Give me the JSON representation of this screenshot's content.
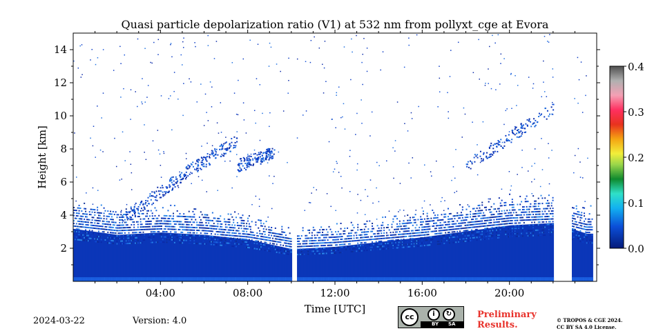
{
  "chart_data": {
    "type": "heatmap",
    "title": "Quasi particle depolarization ratio (V1) at 532 nm from pollyxt_cge at Evora",
    "xlabel": "Time [UTC]",
    "ylabel": "Height [km]",
    "x_range_hours": [
      0,
      24
    ],
    "y_range_km": [
      0,
      15
    ],
    "x_ticks": [
      {
        "value": 4,
        "label": "04:00"
      },
      {
        "value": 8,
        "label": "08:00"
      },
      {
        "value": 12,
        "label": "12:00"
      },
      {
        "value": 16,
        "label": "16:00"
      },
      {
        "value": 20,
        "label": "20:00"
      }
    ],
    "y_ticks": [
      {
        "value": 2,
        "label": "2"
      },
      {
        "value": 4,
        "label": "4"
      },
      {
        "value": 6,
        "label": "6"
      },
      {
        "value": 8,
        "label": "8"
      },
      {
        "value": 10,
        "label": "10"
      },
      {
        "value": 12,
        "label": "12"
      },
      {
        "value": 14,
        "label": "14"
      }
    ],
    "colorbar": {
      "range": [
        0.0,
        0.4
      ],
      "ticks": [
        {
          "value": 0.0,
          "label": "0.0"
        },
        {
          "value": 0.1,
          "label": "0.1"
        },
        {
          "value": 0.2,
          "label": "0.2"
        },
        {
          "value": 0.3,
          "label": "0.3"
        },
        {
          "value": 0.4,
          "label": "0.4"
        }
      ]
    },
    "boundary_layer_top_km": [
      [
        0,
        4.4
      ],
      [
        2,
        3.9
      ],
      [
        4,
        4.1
      ],
      [
        6,
        3.9
      ],
      [
        8,
        3.5
      ],
      [
        10,
        2.7
      ],
      [
        12,
        2.9
      ],
      [
        14,
        3.3
      ],
      [
        16,
        3.7
      ],
      [
        18,
        4.2
      ],
      [
        20,
        4.7
      ],
      [
        22,
        4.9
      ],
      [
        23.5,
        4.0
      ]
    ],
    "elevated_layers": [
      {
        "x": [
          2.2,
          5.0
        ],
        "y": [
          3.8,
          6.4
        ]
      },
      {
        "x": [
          5.0,
          7.5
        ],
        "y": [
          6.5,
          8.5
        ]
      },
      {
        "x": [
          7.5,
          9.2
        ],
        "y": [
          7.0,
          7.8
        ]
      },
      {
        "x": [
          18.0,
          22.0
        ],
        "y": [
          7.0,
          10.5
        ]
      }
    ],
    "data_gaps_hours": [
      [
        10.0,
        10.2
      ],
      [
        22.0,
        22.8
      ]
    ]
  },
  "footer": {
    "date": "2024-03-22",
    "version": "Version: 4.0",
    "license_badge": {
      "cc": "cc",
      "by": "BY",
      "sa": "SA"
    },
    "preliminary_line1": "Preliminary",
    "preliminary_line2": "Results.",
    "copyright_line1": "© TROPOS & CGE 2024.",
    "copyright_line2": "CC BY SA 4.0 License."
  },
  "colors": {
    "low": "#0a2aa8",
    "mid": "#1e6fe0",
    "accent": "#e8322b"
  }
}
